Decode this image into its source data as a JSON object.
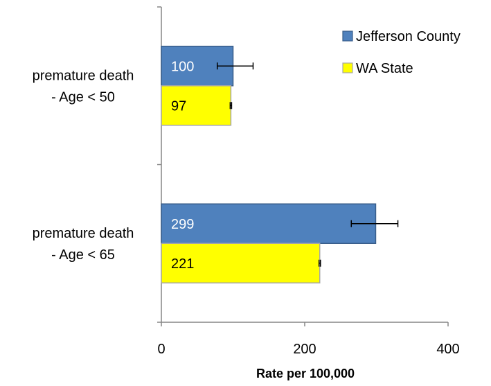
{
  "chart_data": {
    "type": "bar",
    "orientation": "horizontal",
    "title": "",
    "xlabel": "Rate per 100,000",
    "ylabel": "",
    "xlim": [
      0,
      400
    ],
    "xticks": [
      0,
      200,
      400
    ],
    "grid": false,
    "legend_position": "top-right",
    "categories": [
      [
        "premature death",
        "- Age < 50"
      ],
      [
        "premature death",
        "- Age < 65"
      ]
    ],
    "series": [
      {
        "name": "Jefferson County",
        "color": "#4F81BD",
        "border": "#385D8A",
        "label_color": "#ffffff",
        "values": [
          100,
          299
        ],
        "labels": [
          "100",
          "299"
        ],
        "error_low": [
          78,
          265
        ],
        "error_high": [
          128,
          330
        ]
      },
      {
        "name": "WA State",
        "color": "#FFFF00",
        "border": "#A6A6A6",
        "label_color": "#000000",
        "values": [
          97,
          221
        ],
        "labels": [
          "97",
          "221"
        ],
        "error_low": [
          96,
          220
        ],
        "error_high": [
          98,
          222
        ]
      }
    ]
  }
}
